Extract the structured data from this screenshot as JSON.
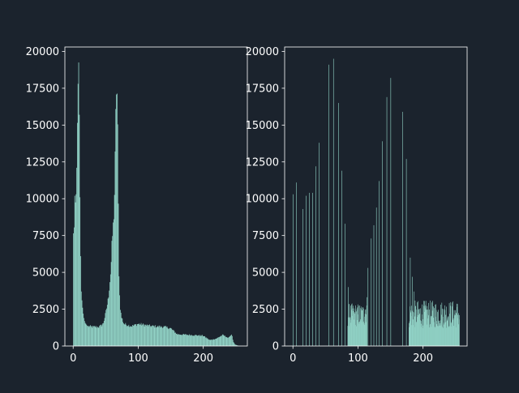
{
  "colors": {
    "background": "#1b232d",
    "bars": "#93d5c8",
    "axes": "#ffffff"
  },
  "chart_data": [
    {
      "type": "bar",
      "subtype": "histogram",
      "title": "",
      "xlabel": "",
      "ylabel": "",
      "xlim": [
        -12.75,
        267.75
      ],
      "ylim": [
        0,
        20300
      ],
      "xticks": [
        0,
        100,
        200
      ],
      "yticks": [
        0,
        2500,
        5000,
        7500,
        10000,
        12500,
        15000,
        17500,
        20000
      ],
      "grid": false,
      "legend": "none",
      "bin_width": 1,
      "profile": [
        [
          0,
          10300
        ],
        [
          1,
          5000
        ],
        [
          2,
          11100
        ],
        [
          3,
          9300
        ],
        [
          4,
          10200
        ],
        [
          5,
          10400
        ],
        [
          6,
          13800
        ],
        [
          7,
          16500
        ],
        [
          8,
          19100
        ],
        [
          9,
          19400
        ],
        [
          10,
          12000
        ],
        [
          11,
          8200
        ],
        [
          12,
          4000
        ],
        [
          14,
          2800
        ],
        [
          16,
          2000
        ],
        [
          18,
          1600
        ],
        [
          22,
          1350
        ],
        [
          30,
          1300
        ],
        [
          40,
          1300
        ],
        [
          46,
          1500
        ],
        [
          50,
          2200
        ],
        [
          54,
          3200
        ],
        [
          58,
          5200
        ],
        [
          60,
          7200
        ],
        [
          62,
          8400
        ],
        [
          63,
          9500
        ],
        [
          64,
          11200
        ],
        [
          65,
          13900
        ],
        [
          66,
          16900
        ],
        [
          67,
          18200
        ],
        [
          68,
          15900
        ],
        [
          69,
          12800
        ],
        [
          70,
          6000
        ],
        [
          71,
          4000
        ],
        [
          72,
          2800
        ],
        [
          74,
          2000
        ],
        [
          78,
          1500
        ],
        [
          90,
          1350
        ],
        [
          100,
          1500
        ],
        [
          120,
          1350
        ],
        [
          140,
          1300
        ],
        [
          150,
          1200
        ],
        [
          160,
          800
        ],
        [
          200,
          700
        ],
        [
          210,
          400
        ],
        [
          220,
          500
        ],
        [
          230,
          750
        ],
        [
          238,
          550
        ],
        [
          242,
          700
        ],
        [
          244,
          800
        ],
        [
          246,
          300
        ],
        [
          249,
          100
        ],
        [
          255,
          0
        ]
      ]
    },
    {
      "type": "bar",
      "subtype": "histogram",
      "title": "",
      "xlabel": "",
      "ylabel": "",
      "xlim": [
        -12.75,
        267.75
      ],
      "ylim": [
        0,
        20300
      ],
      "xticks": [
        0,
        100,
        200
      ],
      "yticks": [
        0,
        2500,
        5000,
        7500,
        10000,
        12500,
        15000,
        17500,
        20000
      ],
      "grid": false,
      "legend": "none",
      "spikes": [
        [
          0,
          10300
        ],
        [
          5,
          11100
        ],
        [
          15,
          9300
        ],
        [
          20,
          10200
        ],
        [
          25,
          10400
        ],
        [
          30,
          10400
        ],
        [
          35,
          12200
        ],
        [
          40,
          13800
        ],
        [
          55,
          19100
        ],
        [
          62,
          19500
        ],
        [
          70,
          16500
        ],
        [
          75,
          11900
        ],
        [
          80,
          8300
        ],
        [
          85,
          4000
        ],
        [
          115,
          5300
        ],
        [
          120,
          7300
        ],
        [
          124,
          8200
        ],
        [
          128,
          9400
        ],
        [
          132,
          11200
        ],
        [
          137,
          13900
        ],
        [
          144,
          16900
        ],
        [
          150,
          18200
        ],
        [
          168,
          15900
        ],
        [
          174,
          12700
        ],
        [
          180,
          6000
        ],
        [
          183,
          4700
        ],
        [
          186,
          3700
        ]
      ],
      "dense_bands": [
        {
          "from": 84,
          "to": 110,
          "low": 1300,
          "high": 2900
        },
        {
          "from": 110,
          "to": 114,
          "low": 1500,
          "high": 3500
        },
        {
          "from": 178,
          "to": 256,
          "low": 1200,
          "high": 3100
        }
      ]
    }
  ]
}
